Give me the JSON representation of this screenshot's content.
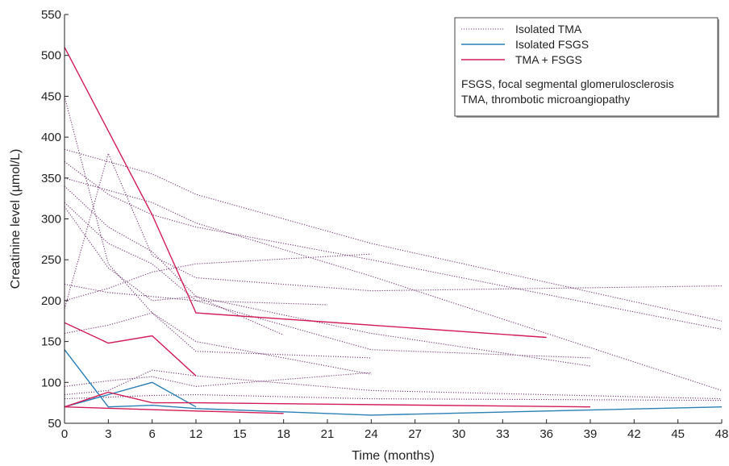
{
  "chart_data": {
    "type": "line",
    "xlabel": "Time (months)",
    "ylabel": "Creatinine level (µmol/L)",
    "xlim": [
      0,
      48
    ],
    "ylim": [
      50,
      550
    ],
    "x_ticks": [
      0,
      3,
      6,
      12,
      15,
      18,
      21,
      24,
      27,
      30,
      33,
      36,
      39,
      42,
      45,
      48
    ],
    "y_ticks": [
      50,
      100,
      150,
      200,
      250,
      300,
      350,
      400,
      450,
      500,
      550
    ],
    "x_tick_scale": "0-6 at 3-month spacing, 6-12 compressed to same width",
    "grid": false,
    "legend": {
      "placement": "top-right",
      "entries": [
        {
          "label": "Isolated TMA",
          "color": "#7a3a78",
          "style": "dotted"
        },
        {
          "label": "Isolated FSGS",
          "color": "#2a7fb5",
          "style": "solid"
        },
        {
          "label": "TMA + FSGS",
          "color": "#d21d57",
          "style": "solid"
        }
      ],
      "notes": [
        "FSGS, focal segmental glomerulosclerosis",
        "TMA, thrombotic microangiopathy"
      ]
    },
    "series": [
      {
        "group": "Isolated TMA",
        "points": [
          [
            0,
            450
          ],
          [
            3,
            245
          ],
          [
            6,
            185
          ],
          [
            12,
            150
          ],
          [
            24,
            110
          ]
        ]
      },
      {
        "group": "Isolated TMA",
        "points": [
          [
            0,
            385
          ],
          [
            6,
            355
          ],
          [
            12,
            330
          ],
          [
            24,
            270
          ],
          [
            48,
            175
          ]
        ]
      },
      {
        "group": "Isolated TMA",
        "points": [
          [
            0,
            370
          ],
          [
            3,
            330
          ],
          [
            6,
            305
          ],
          [
            12,
            290
          ],
          [
            24,
            250
          ],
          [
            48,
            165
          ]
        ]
      },
      {
        "group": "Isolated TMA",
        "points": [
          [
            0,
            350
          ],
          [
            3,
            335
          ],
          [
            6,
            320
          ],
          [
            12,
            295
          ],
          [
            24,
            230
          ],
          [
            48,
            90
          ]
        ]
      },
      {
        "group": "Isolated TMA",
        "points": [
          [
            0,
            320
          ],
          [
            3,
            270
          ],
          [
            6,
            245
          ],
          [
            12,
            200
          ],
          [
            24,
            140
          ],
          [
            39,
            130
          ]
        ]
      },
      {
        "group": "Isolated TMA",
        "points": [
          [
            0,
            315
          ],
          [
            3,
            240
          ],
          [
            6,
            200
          ],
          [
            12,
            205
          ],
          [
            24,
            160
          ],
          [
            39,
            120
          ]
        ]
      },
      {
        "group": "Isolated TMA",
        "points": [
          [
            0,
            190
          ],
          [
            3,
            380
          ],
          [
            6,
            255
          ],
          [
            12,
            228
          ],
          [
            24,
            212
          ],
          [
            48,
            218
          ]
        ]
      },
      {
        "group": "Isolated TMA",
        "points": [
          [
            0,
            220
          ],
          [
            3,
            210
          ],
          [
            6,
            205
          ],
          [
            12,
            200
          ],
          [
            21,
            195
          ]
        ]
      },
      {
        "group": "Isolated TMA",
        "points": [
          [
            0,
            200
          ],
          [
            3,
            215
          ],
          [
            6,
            235
          ],
          [
            12,
            245
          ],
          [
            24,
            257
          ]
        ]
      },
      {
        "group": "Isolated TMA",
        "points": [
          [
            0,
            160
          ],
          [
            3,
            170
          ],
          [
            6,
            185
          ],
          [
            12,
            138
          ],
          [
            24,
            130
          ]
        ]
      },
      {
        "group": "Isolated TMA",
        "points": [
          [
            0,
            340
          ],
          [
            3,
            290
          ],
          [
            6,
            260
          ],
          [
            12,
            205
          ],
          [
            18,
            158
          ]
        ]
      },
      {
        "group": "Isolated TMA",
        "points": [
          [
            0,
            95
          ],
          [
            3,
            102
          ],
          [
            6,
            107
          ],
          [
            12,
            95
          ],
          [
            24,
            112
          ]
        ]
      },
      {
        "group": "Isolated TMA",
        "points": [
          [
            0,
            85
          ],
          [
            3,
            90
          ],
          [
            6,
            115
          ],
          [
            12,
            108
          ],
          [
            24,
            90
          ],
          [
            48,
            80
          ]
        ]
      },
      {
        "group": "Isolated TMA",
        "points": [
          [
            0,
            80
          ],
          [
            3,
            82
          ],
          [
            6,
            84
          ],
          [
            12,
            85
          ],
          [
            24,
            80
          ],
          [
            48,
            78
          ]
        ]
      },
      {
        "group": "Isolated FSGS",
        "points": [
          [
            0,
            140
          ],
          [
            3,
            70
          ],
          [
            6,
            72
          ],
          [
            12,
            68
          ],
          [
            24,
            60
          ],
          [
            48,
            70
          ]
        ]
      },
      {
        "group": "Isolated FSGS",
        "points": [
          [
            0,
            70
          ],
          [
            3,
            85
          ],
          [
            6,
            100
          ],
          [
            12,
            70
          ]
        ]
      },
      {
        "group": "TMA + FSGS",
        "points": [
          [
            0,
            510
          ],
          [
            6,
            305
          ],
          [
            12,
            185
          ],
          [
            36,
            155
          ]
        ]
      },
      {
        "group": "TMA + FSGS",
        "points": [
          [
            0,
            173
          ],
          [
            3,
            148
          ],
          [
            6,
            157
          ],
          [
            12,
            108
          ]
        ]
      },
      {
        "group": "TMA + FSGS",
        "points": [
          [
            0,
            70
          ],
          [
            3,
            88
          ],
          [
            6,
            75
          ],
          [
            12,
            75
          ],
          [
            39,
            70
          ]
        ]
      },
      {
        "group": "TMA + FSGS",
        "points": [
          [
            0,
            70
          ],
          [
            12,
            65
          ],
          [
            18,
            62
          ]
        ]
      }
    ]
  }
}
